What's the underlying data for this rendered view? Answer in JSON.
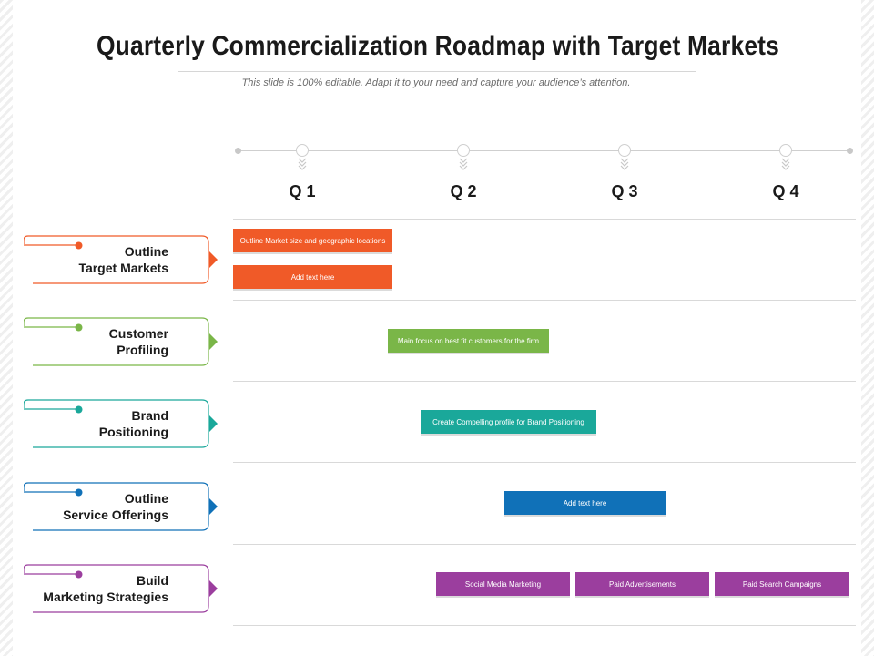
{
  "title": "Quarterly Commercialization Roadmap with Target Markets",
  "subtitle": "This slide is 100% editable. Adapt it to your need and capture your audience’s attention.",
  "quarters": [
    "Q 1",
    "Q 2",
    "Q 3",
    "Q 4"
  ],
  "colors": {
    "orange": "#f05a28",
    "green": "#7ab648",
    "teal": "#1aa89a",
    "blue": "#1071b8",
    "purple": "#9b3e9e"
  },
  "rows": [
    {
      "line1": "Outline",
      "line2": "Target Markets",
      "color": "#f05a28"
    },
    {
      "line1": "Customer",
      "line2": "Profiling",
      "color": "#7ab648"
    },
    {
      "line1": "Brand",
      "line2": "Positioning",
      "color": "#1aa89a"
    },
    {
      "line1": "Outline",
      "line2": "Service Offerings",
      "color": "#1071b8"
    },
    {
      "line1": "Build",
      "line2": "Marketing Strategies",
      "color": "#9b3e9e"
    }
  ],
  "bars": [
    {
      "text": "Outline  Market size and geographic  locations",
      "row": 0,
      "color": "#f05a28"
    },
    {
      "text": "Add text here",
      "row": 0,
      "color": "#f05a28"
    },
    {
      "text": "Main focus on best fit customers for the firm",
      "row": 1,
      "color": "#7ab648"
    },
    {
      "text": "Create Compelling profile for Brand Positioning",
      "row": 2,
      "color": "#1aa89a"
    },
    {
      "text": "Add text here",
      "row": 3,
      "color": "#1071b8"
    },
    {
      "text": "Social Media Marketing",
      "row": 4,
      "color": "#9b3e9e"
    },
    {
      "text": "Paid Advertisements",
      "row": 4,
      "color": "#9b3e9e"
    },
    {
      "text": "Paid Search Campaigns",
      "row": 4,
      "color": "#9b3e9e"
    }
  ]
}
